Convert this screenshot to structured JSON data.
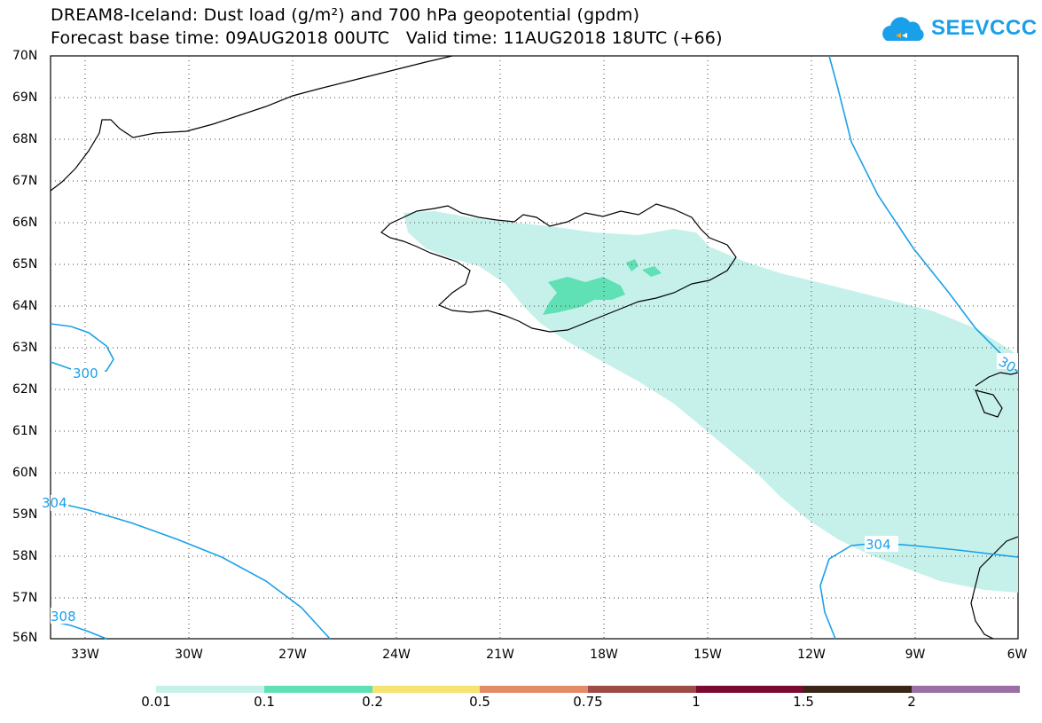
{
  "header": {
    "title_line1": "DREAM8-Iceland: Dust load (g/m²) and 700 hPa geopotential (gpdm)",
    "title_line2": "Forecast base time: 09AUG2018 00UTC   Valid time: 11AUG2018 18UTC (+66)"
  },
  "logo": {
    "text": "SEEVCCC",
    "icon": "cloud-logo-icon",
    "color": "#1aa0e8"
  },
  "map": {
    "lat_labels": [
      "70N",
      "69N",
      "68N",
      "67N",
      "66N",
      "65N",
      "64N",
      "63N",
      "62N",
      "61N",
      "60N",
      "59N",
      "58N",
      "57N",
      "56N"
    ],
    "lon_labels": [
      "33W",
      "30W",
      "27W",
      "24W",
      "21W",
      "18W",
      "15W",
      "12W",
      "9W",
      "6W"
    ],
    "contour_labels": [
      "300",
      "304",
      "308",
      "304",
      "30"
    ],
    "contour_color": "#1aa0e8",
    "coastline_color": "#000000"
  },
  "colorbar": {
    "labels": [
      "0.01",
      "0.1",
      "0.2",
      "0.5",
      "0.75",
      "1",
      "1.5",
      "2"
    ],
    "colors": [
      "#c6f1ea",
      "#5fe0b5",
      "#f5e472",
      "#e58a66",
      "#9e4a45",
      "#7a0a2e",
      "#3a2516",
      "#9a6fa3"
    ]
  }
}
